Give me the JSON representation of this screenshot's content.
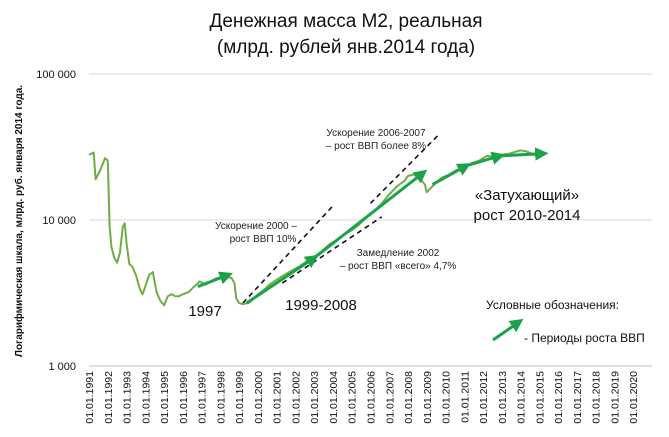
{
  "chart_data": {
    "type": "line",
    "title_line1": "Денежная масса М2, реальная",
    "title_line2": "(млрд. рублей янв.2014 года)",
    "ylabel": "Логарифмическая шкала, млрд. руб. января 2014 года.",
    "yscale": "log",
    "ylim": [
      1000,
      100000
    ],
    "y_ticks": [
      "1 000",
      "10 000",
      "100 000"
    ],
    "xlim": [
      1991,
      2021
    ],
    "x_ticks": [
      "01.01.1991",
      "01.01.1992",
      "01.01.1993",
      "01.01.1994",
      "01.01.1995",
      "01.01.1996",
      "01.01.1997",
      "01.01.1998",
      "01.01.1999",
      "01.01.2000",
      "01.01.2001",
      "01.01.2002",
      "01.01.2003",
      "01.01.2004",
      "01.01.2005",
      "01.01.2006",
      "01.01.2007",
      "01.01.2008",
      "01.01.2009",
      "01.01.2010",
      "01.01.2011",
      "01.01.2012",
      "01.01.2013",
      "01.01.2014",
      "01.01.2015",
      "01.01.2016",
      "01.01.2017",
      "01.01.2018",
      "01.01.2019",
      "01.01.2020"
    ],
    "series": [
      {
        "name": "M2 real",
        "color": "#70ad47",
        "x": [
          1991.0,
          1991.25,
          1991.35,
          1991.6,
          1991.85,
          1992.0,
          1992.1,
          1992.2,
          1992.35,
          1992.5,
          1992.65,
          1992.8,
          1992.9,
          1993.0,
          1993.15,
          1993.3,
          1993.5,
          1993.7,
          1993.85,
          1994.0,
          1994.2,
          1994.4,
          1994.6,
          1994.8,
          1995.0,
          1995.2,
          1995.4,
          1995.6,
          1995.8,
          1996.0,
          1996.3,
          1996.6,
          1996.9,
          1997.2,
          1997.5,
          1997.8,
          1998.0,
          1998.3,
          1998.6,
          1998.75,
          1998.85,
          1999.0,
          1999.2,
          1999.5,
          1999.8,
          2000.0,
          2000.3,
          2000.6,
          2001.0,
          2001.4,
          2001.8,
          2002.2,
          2002.6,
          2003.0,
          2003.4,
          2003.8,
          2004.2,
          2004.6,
          2005.0,
          2005.4,
          2005.8,
          2006.2,
          2006.6,
          2007.0,
          2007.4,
          2007.8,
          2008.0,
          2008.3,
          2008.6,
          2008.9,
          2009.0,
          2009.2,
          2009.5,
          2009.8,
          2010.2,
          2010.6,
          2011.0,
          2011.4,
          2011.8,
          2012.2,
          2012.6,
          2013.0,
          2013.4,
          2013.8,
          2014.0,
          2014.3,
          2014.6,
          2014.9,
          2015.0
        ],
        "values": [
          28000,
          29000,
          19000,
          22000,
          26500,
          25500,
          9000,
          6500,
          5500,
          5100,
          6000,
          9000,
          9500,
          7000,
          5000,
          4800,
          4200,
          3400,
          3100,
          3500,
          4200,
          4400,
          3200,
          2800,
          2600,
          3000,
          3100,
          3000,
          3000,
          3100,
          3200,
          3500,
          3800,
          3600,
          3800,
          4000,
          4000,
          4100,
          4000,
          3700,
          2900,
          2700,
          2650,
          2700,
          2900,
          3100,
          3300,
          3600,
          3900,
          4200,
          4500,
          4800,
          5200,
          5600,
          6100,
          6800,
          7300,
          8000,
          8500,
          9300,
          10500,
          11500,
          13000,
          15000,
          17000,
          18500,
          20000,
          20500,
          19500,
          17500,
          15500,
          16500,
          18000,
          19500,
          20500,
          22000,
          23000,
          24500,
          25500,
          27500,
          27000,
          28000,
          28500,
          29500,
          30000,
          29500,
          28500,
          27500,
          27000
        ]
      }
    ],
    "growth_arrows": [
      {
        "x": [
          1996.8,
          1998.4
        ],
        "values": [
          3500,
          4200
        ]
      },
      {
        "x": [
          1999.4,
          2003.0
        ],
        "values": [
          2700,
          5500
        ]
      },
      {
        "x": [
          2003.0,
          2008.8
        ],
        "values": [
          5500,
          21000
        ]
      },
      {
        "x": [
          2009.3,
          2011.1
        ],
        "values": [
          17500,
          23500
        ]
      },
      {
        "x": [
          2011.1,
          2012.9
        ],
        "values": [
          23500,
          27500
        ]
      },
      {
        "x": [
          2012.9,
          2015.2
        ],
        "values": [
          27500,
          28500
        ]
      }
    ],
    "trend_lines": [
      {
        "x": [
          1999.2,
          2004.0
        ],
        "values": [
          2700,
          12500
        ]
      },
      {
        "x": [
          2001.3,
          2006.6
        ],
        "values": [
          3700,
          10500
        ]
      },
      {
        "x": [
          2006.0,
          2009.6
        ],
        "values": [
          13000,
          38000
        ]
      }
    ],
    "annotations": {
      "a1997": "1997",
      "a1999_2008": "1999-2008",
      "accel2000_l1": "Ускорение 2000 –",
      "accel2000_l2": "рост ВВП 10%",
      "accel2006_l1": "Ускорение 2006-2007",
      "accel2006_l2": "– рост ВВП более 8%",
      "slow2002_l1": "Замедление 2002",
      "slow2002_l2": "– рост ВВП «всего» 4,7%",
      "fading_l1": "«Затухающий»",
      "fading_l2": "рост 2010-2014"
    },
    "legend": {
      "title": "Условные обозначения:",
      "item": "- Периоды роста ВВП"
    }
  }
}
